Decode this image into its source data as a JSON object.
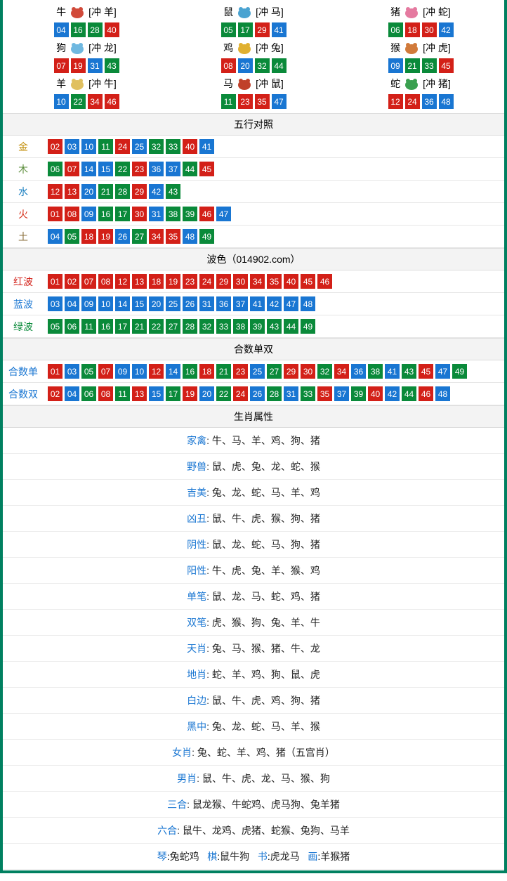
{
  "palette": {
    "red": "#d32018",
    "blue": "#1976d2",
    "green": "#0a8a3a",
    "border": "#008060"
  },
  "zodiac": [
    {
      "name": "牛",
      "clash": "[冲 羊]",
      "icon_color": "#d14a3a",
      "balls": [
        {
          "n": "04",
          "c": "blue"
        },
        {
          "n": "16",
          "c": "green"
        },
        {
          "n": "28",
          "c": "green"
        },
        {
          "n": "40",
          "c": "red"
        }
      ]
    },
    {
      "name": "鼠",
      "clash": "[冲 马]",
      "icon_color": "#4aa3d1",
      "balls": [
        {
          "n": "05",
          "c": "green"
        },
        {
          "n": "17",
          "c": "green"
        },
        {
          "n": "29",
          "c": "red"
        },
        {
          "n": "41",
          "c": "blue"
        }
      ]
    },
    {
      "name": "猪",
      "clash": "[冲 蛇]",
      "icon_color": "#e57aa0",
      "balls": [
        {
          "n": "06",
          "c": "green"
        },
        {
          "n": "18",
          "c": "red"
        },
        {
          "n": "30",
          "c": "red"
        },
        {
          "n": "42",
          "c": "blue"
        }
      ]
    },
    {
      "name": "狗",
      "clash": "[冲 龙]",
      "icon_color": "#6fb8e0",
      "balls": [
        {
          "n": "07",
          "c": "red"
        },
        {
          "n": "19",
          "c": "red"
        },
        {
          "n": "31",
          "c": "blue"
        },
        {
          "n": "43",
          "c": "green"
        }
      ]
    },
    {
      "name": "鸡",
      "clash": "[冲 兔]",
      "icon_color": "#e0b030",
      "balls": [
        {
          "n": "08",
          "c": "red"
        },
        {
          "n": "20",
          "c": "blue"
        },
        {
          "n": "32",
          "c": "green"
        },
        {
          "n": "44",
          "c": "green"
        }
      ]
    },
    {
      "name": "猴",
      "clash": "[冲 虎]",
      "icon_color": "#d17a3a",
      "balls": [
        {
          "n": "09",
          "c": "blue"
        },
        {
          "n": "21",
          "c": "green"
        },
        {
          "n": "33",
          "c": "green"
        },
        {
          "n": "45",
          "c": "red"
        }
      ]
    },
    {
      "name": "羊",
      "clash": "[冲 牛]",
      "icon_color": "#e0c060",
      "balls": [
        {
          "n": "10",
          "c": "blue"
        },
        {
          "n": "22",
          "c": "green"
        },
        {
          "n": "34",
          "c": "red"
        },
        {
          "n": "46",
          "c": "red"
        }
      ]
    },
    {
      "name": "马",
      "clash": "[冲 鼠]",
      "icon_color": "#c0402a",
      "balls": [
        {
          "n": "11",
          "c": "green"
        },
        {
          "n": "23",
          "c": "red"
        },
        {
          "n": "35",
          "c": "red"
        },
        {
          "n": "47",
          "c": "blue"
        }
      ]
    },
    {
      "name": "蛇",
      "clash": "[冲 猪]",
      "icon_color": "#3aa050",
      "balls": [
        {
          "n": "12",
          "c": "red"
        },
        {
          "n": "24",
          "c": "red"
        },
        {
          "n": "36",
          "c": "blue"
        },
        {
          "n": "48",
          "c": "blue"
        }
      ]
    }
  ],
  "wuxing": {
    "title": "五行对照",
    "rows": [
      {
        "label": "金",
        "label_color": "clr-gold",
        "balls": [
          {
            "n": "02",
            "c": "red"
          },
          {
            "n": "03",
            "c": "blue"
          },
          {
            "n": "10",
            "c": "blue"
          },
          {
            "n": "11",
            "c": "green"
          },
          {
            "n": "24",
            "c": "red"
          },
          {
            "n": "25",
            "c": "blue"
          },
          {
            "n": "32",
            "c": "green"
          },
          {
            "n": "33",
            "c": "green"
          },
          {
            "n": "40",
            "c": "red"
          },
          {
            "n": "41",
            "c": "blue"
          }
        ]
      },
      {
        "label": "木",
        "label_color": "clr-wood",
        "balls": [
          {
            "n": "06",
            "c": "green"
          },
          {
            "n": "07",
            "c": "red"
          },
          {
            "n": "14",
            "c": "blue"
          },
          {
            "n": "15",
            "c": "blue"
          },
          {
            "n": "22",
            "c": "green"
          },
          {
            "n": "23",
            "c": "red"
          },
          {
            "n": "36",
            "c": "blue"
          },
          {
            "n": "37",
            "c": "blue"
          },
          {
            "n": "44",
            "c": "green"
          },
          {
            "n": "45",
            "c": "red"
          }
        ]
      },
      {
        "label": "水",
        "label_color": "clr-water",
        "balls": [
          {
            "n": "12",
            "c": "red"
          },
          {
            "n": "13",
            "c": "red"
          },
          {
            "n": "20",
            "c": "blue"
          },
          {
            "n": "21",
            "c": "green"
          },
          {
            "n": "28",
            "c": "green"
          },
          {
            "n": "29",
            "c": "red"
          },
          {
            "n": "42",
            "c": "blue"
          },
          {
            "n": "43",
            "c": "green"
          }
        ]
      },
      {
        "label": "火",
        "label_color": "clr-fire",
        "balls": [
          {
            "n": "01",
            "c": "red"
          },
          {
            "n": "08",
            "c": "red"
          },
          {
            "n": "09",
            "c": "blue"
          },
          {
            "n": "16",
            "c": "green"
          },
          {
            "n": "17",
            "c": "green"
          },
          {
            "n": "30",
            "c": "red"
          },
          {
            "n": "31",
            "c": "blue"
          },
          {
            "n": "38",
            "c": "green"
          },
          {
            "n": "39",
            "c": "green"
          },
          {
            "n": "46",
            "c": "red"
          },
          {
            "n": "47",
            "c": "blue"
          }
        ]
      },
      {
        "label": "土",
        "label_color": "clr-earth",
        "balls": [
          {
            "n": "04",
            "c": "blue"
          },
          {
            "n": "05",
            "c": "green"
          },
          {
            "n": "18",
            "c": "red"
          },
          {
            "n": "19",
            "c": "red"
          },
          {
            "n": "26",
            "c": "blue"
          },
          {
            "n": "27",
            "c": "green"
          },
          {
            "n": "34",
            "c": "red"
          },
          {
            "n": "35",
            "c": "red"
          },
          {
            "n": "48",
            "c": "blue"
          },
          {
            "n": "49",
            "c": "green"
          }
        ]
      }
    ]
  },
  "bose": {
    "title": "波色（014902.com）",
    "rows": [
      {
        "label": "红波",
        "label_color": "clr-red",
        "balls": [
          {
            "n": "01",
            "c": "red"
          },
          {
            "n": "02",
            "c": "red"
          },
          {
            "n": "07",
            "c": "red"
          },
          {
            "n": "08",
            "c": "red"
          },
          {
            "n": "12",
            "c": "red"
          },
          {
            "n": "13",
            "c": "red"
          },
          {
            "n": "18",
            "c": "red"
          },
          {
            "n": "19",
            "c": "red"
          },
          {
            "n": "23",
            "c": "red"
          },
          {
            "n": "24",
            "c": "red"
          },
          {
            "n": "29",
            "c": "red"
          },
          {
            "n": "30",
            "c": "red"
          },
          {
            "n": "34",
            "c": "red"
          },
          {
            "n": "35",
            "c": "red"
          },
          {
            "n": "40",
            "c": "red"
          },
          {
            "n": "45",
            "c": "red"
          },
          {
            "n": "46",
            "c": "red"
          }
        ]
      },
      {
        "label": "蓝波",
        "label_color": "clr-blue",
        "balls": [
          {
            "n": "03",
            "c": "blue"
          },
          {
            "n": "04",
            "c": "blue"
          },
          {
            "n": "09",
            "c": "blue"
          },
          {
            "n": "10",
            "c": "blue"
          },
          {
            "n": "14",
            "c": "blue"
          },
          {
            "n": "15",
            "c": "blue"
          },
          {
            "n": "20",
            "c": "blue"
          },
          {
            "n": "25",
            "c": "blue"
          },
          {
            "n": "26",
            "c": "blue"
          },
          {
            "n": "31",
            "c": "blue"
          },
          {
            "n": "36",
            "c": "blue"
          },
          {
            "n": "37",
            "c": "blue"
          },
          {
            "n": "41",
            "c": "blue"
          },
          {
            "n": "42",
            "c": "blue"
          },
          {
            "n": "47",
            "c": "blue"
          },
          {
            "n": "48",
            "c": "blue"
          }
        ]
      },
      {
        "label": "绿波",
        "label_color": "clr-green",
        "balls": [
          {
            "n": "05",
            "c": "green"
          },
          {
            "n": "06",
            "c": "green"
          },
          {
            "n": "11",
            "c": "green"
          },
          {
            "n": "16",
            "c": "green"
          },
          {
            "n": "17",
            "c": "green"
          },
          {
            "n": "21",
            "c": "green"
          },
          {
            "n": "22",
            "c": "green"
          },
          {
            "n": "27",
            "c": "green"
          },
          {
            "n": "28",
            "c": "green"
          },
          {
            "n": "32",
            "c": "green"
          },
          {
            "n": "33",
            "c": "green"
          },
          {
            "n": "38",
            "c": "green"
          },
          {
            "n": "39",
            "c": "green"
          },
          {
            "n": "43",
            "c": "green"
          },
          {
            "n": "44",
            "c": "green"
          },
          {
            "n": "49",
            "c": "green"
          }
        ]
      }
    ]
  },
  "heshu": {
    "title": "合数单双",
    "rows": [
      {
        "label": "合数单",
        "label_color": "clr-blue",
        "balls": [
          {
            "n": "01",
            "c": "red"
          },
          {
            "n": "03",
            "c": "blue"
          },
          {
            "n": "05",
            "c": "green"
          },
          {
            "n": "07",
            "c": "red"
          },
          {
            "n": "09",
            "c": "blue"
          },
          {
            "n": "10",
            "c": "blue"
          },
          {
            "n": "12",
            "c": "red"
          },
          {
            "n": "14",
            "c": "blue"
          },
          {
            "n": "16",
            "c": "green"
          },
          {
            "n": "18",
            "c": "red"
          },
          {
            "n": "21",
            "c": "green"
          },
          {
            "n": "23",
            "c": "red"
          },
          {
            "n": "25",
            "c": "blue"
          },
          {
            "n": "27",
            "c": "green"
          },
          {
            "n": "29",
            "c": "red"
          },
          {
            "n": "30",
            "c": "red"
          },
          {
            "n": "32",
            "c": "green"
          },
          {
            "n": "34",
            "c": "red"
          },
          {
            "n": "36",
            "c": "blue"
          },
          {
            "n": "38",
            "c": "green"
          },
          {
            "n": "41",
            "c": "blue"
          },
          {
            "n": "43",
            "c": "green"
          },
          {
            "n": "45",
            "c": "red"
          },
          {
            "n": "47",
            "c": "blue"
          },
          {
            "n": "49",
            "c": "green"
          }
        ]
      },
      {
        "label": "合数双",
        "label_color": "clr-blue",
        "balls": [
          {
            "n": "02",
            "c": "red"
          },
          {
            "n": "04",
            "c": "blue"
          },
          {
            "n": "06",
            "c": "green"
          },
          {
            "n": "08",
            "c": "red"
          },
          {
            "n": "11",
            "c": "green"
          },
          {
            "n": "13",
            "c": "red"
          },
          {
            "n": "15",
            "c": "blue"
          },
          {
            "n": "17",
            "c": "green"
          },
          {
            "n": "19",
            "c": "red"
          },
          {
            "n": "20",
            "c": "blue"
          },
          {
            "n": "22",
            "c": "green"
          },
          {
            "n": "24",
            "c": "red"
          },
          {
            "n": "26",
            "c": "blue"
          },
          {
            "n": "28",
            "c": "green"
          },
          {
            "n": "31",
            "c": "blue"
          },
          {
            "n": "33",
            "c": "green"
          },
          {
            "n": "35",
            "c": "red"
          },
          {
            "n": "37",
            "c": "blue"
          },
          {
            "n": "39",
            "c": "green"
          },
          {
            "n": "40",
            "c": "red"
          },
          {
            "n": "42",
            "c": "blue"
          },
          {
            "n": "44",
            "c": "green"
          },
          {
            "n": "46",
            "c": "red"
          },
          {
            "n": "48",
            "c": "blue"
          }
        ]
      }
    ]
  },
  "shuxing": {
    "title": "生肖属性",
    "rows": [
      {
        "k": "家禽",
        "v": "牛、马、羊、鸡、狗、猪"
      },
      {
        "k": "野兽",
        "v": "鼠、虎、兔、龙、蛇、猴"
      },
      {
        "k": "吉美",
        "v": "兔、龙、蛇、马、羊、鸡"
      },
      {
        "k": "凶丑",
        "v": "鼠、牛、虎、猴、狗、猪"
      },
      {
        "k": "阴性",
        "v": "鼠、龙、蛇、马、狗、猪"
      },
      {
        "k": "阳性",
        "v": "牛、虎、兔、羊、猴、鸡"
      },
      {
        "k": "单笔",
        "v": "鼠、龙、马、蛇、鸡、猪"
      },
      {
        "k": "双笔",
        "v": "虎、猴、狗、兔、羊、牛"
      },
      {
        "k": "天肖",
        "v": "兔、马、猴、猪、牛、龙"
      },
      {
        "k": "地肖",
        "v": "蛇、羊、鸡、狗、鼠、虎"
      },
      {
        "k": "白边",
        "v": "鼠、牛、虎、鸡、狗、猪"
      },
      {
        "k": "黑中",
        "v": "兔、龙、蛇、马、羊、猴"
      },
      {
        "k": "女肖",
        "v": "兔、蛇、羊、鸡、猪（五宫肖）"
      },
      {
        "k": "男肖",
        "v": "鼠、牛、虎、龙、马、猴、狗"
      },
      {
        "k": "三合",
        "v": "鼠龙猴、牛蛇鸡、虎马狗、兔羊猪"
      },
      {
        "k": "六合",
        "v": "鼠牛、龙鸡、虎猪、蛇猴、兔狗、马羊"
      }
    ],
    "footer_parts": [
      {
        "k": "琴",
        "v": "兔蛇鸡"
      },
      {
        "k": "棋",
        "v": "鼠牛狗"
      },
      {
        "k": "书",
        "v": "虎龙马"
      },
      {
        "k": "画",
        "v": "羊猴猪"
      }
    ]
  }
}
